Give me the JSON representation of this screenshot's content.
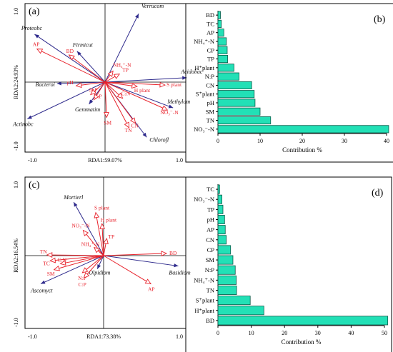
{
  "colors": {
    "taxa": "#2e2a8c",
    "env": "#e8222b",
    "bar_fill": "#22e0b6",
    "bar_stroke": "#0a5a48",
    "axis": "#000000"
  },
  "chart_data": [
    {
      "type": "scatter",
      "panel_label": "(a)",
      "xlabel": "RDA1:59.07%",
      "ylabel": "RDA2:24.93%",
      "xlim": [
        -1.0,
        1.0
      ],
      "ylim": [
        -1.0,
        1.0
      ],
      "x_ticks": [
        "-1.0",
        "1.0"
      ],
      "y_ticks": [
        "1.0",
        "-1.0"
      ],
      "taxa_vectors": [
        {
          "name": "Verrucom",
          "x": 0.42,
          "y": 0.93
        },
        {
          "name": "Proteobc",
          "x": -0.88,
          "y": 0.65
        },
        {
          "name": "Firmicut",
          "x": -0.35,
          "y": 0.42
        },
        {
          "name": "Acidobac",
          "x": 1.02,
          "y": 0.06
        },
        {
          "name": "Bacteroi",
          "x": -0.6,
          "y": -0.02
        },
        {
          "name": "Methylom",
          "x": 0.85,
          "y": -0.35
        },
        {
          "name": "Gemmatim",
          "x": -0.2,
          "y": -0.3
        },
        {
          "name": "Actinobc",
          "x": -0.97,
          "y": -0.5
        },
        {
          "name": "Chlorofl",
          "x": 0.52,
          "y": -0.75
        }
      ],
      "env_vectors": [
        {
          "name": "AP",
          "x": -0.85,
          "y": 0.45
        },
        {
          "name": "BD",
          "x": -0.45,
          "y": 0.37
        },
        {
          "name": "NH₄⁺-N",
          "x": 0.1,
          "y": 0.15
        },
        {
          "name": "TP",
          "x": 0.18,
          "y": 0.11
        },
        {
          "name": "H plant",
          "x": 0.4,
          "y": -0.06
        },
        {
          "name": "S plant",
          "x": 0.75,
          "y": -0.04
        },
        {
          "name": "pH",
          "x": -0.36,
          "y": -0.05
        },
        {
          "name": "N:P",
          "x": -0.18,
          "y": -0.17
        },
        {
          "name": "C:P",
          "x": -0.14,
          "y": -0.24
        },
        {
          "name": "C:N",
          "x": 0.22,
          "y": -0.22
        },
        {
          "name": "NO₃⁻-N",
          "x": 0.78,
          "y": -0.38
        },
        {
          "name": "SM",
          "x": 0.02,
          "y": -0.48
        },
        {
          "name": "CN",
          "x": 0.38,
          "y": -0.56
        },
        {
          "name": "TN",
          "x": 0.3,
          "y": -0.62
        }
      ]
    },
    {
      "type": "bar",
      "panel_label": "(b)",
      "xlabel": "Contribution %",
      "xlim": [
        0,
        40
      ],
      "x_ticks": [
        0,
        10,
        20,
        30,
        40
      ],
      "categories": [
        "BD",
        "TC",
        "AP",
        "NH₄⁺-N",
        "CP",
        "TP",
        "H⁺plant",
        "N:P",
        "CN",
        "S⁺plant",
        "pH",
        "SM",
        "TN",
        "NO₃⁻-N"
      ],
      "values": [
        0.6,
        0.8,
        1.4,
        2.0,
        2.2,
        2.3,
        3.8,
        5.0,
        8.0,
        8.6,
        8.8,
        10.0,
        12.5,
        40.5
      ]
    },
    {
      "type": "scatter",
      "panel_label": "(c)",
      "xlabel": "RDA1:73.38%",
      "ylabel": "RDA2:16.54%",
      "xlim": [
        -1.0,
        1.0
      ],
      "ylim": [
        -1.0,
        1.0
      ],
      "x_ticks": [
        "-1.0",
        "1.0"
      ],
      "y_ticks": [
        "1.0",
        "-1.0"
      ],
      "taxa_vectors": [
        {
          "name": "Mortierl",
          "x": -0.38,
          "y": 0.72
        },
        {
          "name": "Basidiom",
          "x": 0.95,
          "y": -0.14
        },
        {
          "name": "Olpidiom",
          "x": -0.08,
          "y": -0.18
        },
        {
          "name": "Ascomyct",
          "x": -0.8,
          "y": -0.38
        }
      ],
      "env_vectors": [
        {
          "name": "S plant",
          "x": -0.1,
          "y": 0.58
        },
        {
          "name": "H plant",
          "x": -0.02,
          "y": 0.43
        },
        {
          "name": "NO₃⁻-N",
          "x": -0.26,
          "y": 0.34
        },
        {
          "name": "TP",
          "x": 0.04,
          "y": 0.23
        },
        {
          "name": "NH₄⁺-N",
          "x": -0.12,
          "y": 0.11
        },
        {
          "name": "BD",
          "x": 0.8,
          "y": 0.03
        },
        {
          "name": "TN",
          "x": -0.72,
          "y": 0.01
        },
        {
          "name": "TC",
          "x": -0.68,
          "y": -0.07
        },
        {
          "name": "C:N",
          "x": -0.55,
          "y": -0.11
        },
        {
          "name": "SM",
          "x": -0.63,
          "y": -0.19
        },
        {
          "name": "N:P",
          "x": -0.27,
          "y": -0.23
        },
        {
          "name": "C:P",
          "x": -0.25,
          "y": -0.3
        },
        {
          "name": "AP",
          "x": 0.6,
          "y": -0.38
        }
      ]
    },
    {
      "type": "bar",
      "panel_label": "(d)",
      "xlabel": "Contribution %",
      "xlim": [
        0,
        50
      ],
      "x_ticks": [
        0,
        10,
        20,
        30,
        40,
        50
      ],
      "categories": [
        "TC",
        "NO₃⁻-N",
        "TP",
        "pH",
        "AP",
        "CN",
        "CP",
        "SM",
        "N:P",
        "NH₄⁺-N",
        "TN",
        "S⁺plant",
        "H⁺plant",
        "BD"
      ],
      "values": [
        0.5,
        1.2,
        1.5,
        2.0,
        2.2,
        2.5,
        3.8,
        4.5,
        5.2,
        5.5,
        5.6,
        9.7,
        13.8,
        51.0
      ]
    }
  ]
}
